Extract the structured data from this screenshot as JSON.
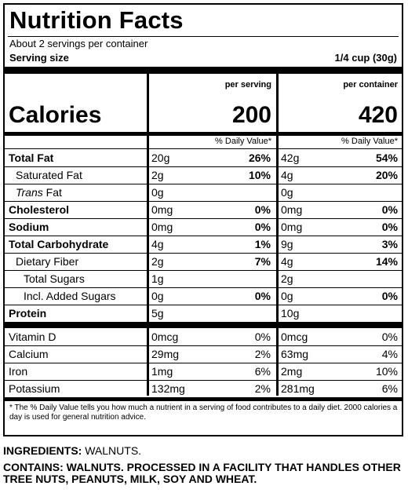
{
  "title": "Nutrition Facts",
  "servings_per_container": "About 2 servings per container",
  "serving_size_label": "Serving size",
  "serving_size_value": "1/4 cup (30g)",
  "col_per_serving": "per serving",
  "col_per_container": "per container",
  "calories_label": "Calories",
  "calories_per_serving": "200",
  "calories_per_container": "420",
  "dv_header_1": "% Daily Value*",
  "dv_header_2": "% Daily Value*",
  "nutrients": [
    {
      "name": "Total Fat",
      "a1": "20g",
      "p1": "26%",
      "a2": "42g",
      "p2": "54%"
    },
    {
      "name": "Saturated Fat",
      "a1": "2g",
      "p1": "10%",
      "a2": "4g",
      "p2": "20%"
    },
    {
      "name_italic": "Trans",
      "name_rest": " Fat",
      "a1": "0g",
      "p1": "",
      "a2": "0g",
      "p2": ""
    },
    {
      "name": "Cholesterol",
      "a1": "0mg",
      "p1": "0%",
      "a2": "0mg",
      "p2": "0%"
    },
    {
      "name": "Sodium",
      "a1": "0mg",
      "p1": "0%",
      "a2": "0mg",
      "p2": "0%"
    },
    {
      "name": "Total Carbohydrate",
      "a1": "4g",
      "p1": "1%",
      "a2": "9g",
      "p2": "3%"
    },
    {
      "name": "Dietary Fiber",
      "a1": "2g",
      "p1": "7%",
      "a2": "4g",
      "p2": "14%"
    },
    {
      "name": "Total Sugars",
      "a1": "1g",
      "p1": "",
      "a2": "2g",
      "p2": ""
    },
    {
      "name": "Incl. Added Sugars",
      "a1": "0g",
      "p1": "0%",
      "a2": "0g",
      "p2": "0%"
    },
    {
      "name": "Protein",
      "a1": "5g",
      "p1": "",
      "a2": "10g",
      "p2": ""
    },
    {
      "name": "Vitamin D",
      "a1": "0mcg",
      "p1": "0%",
      "a2": "0mcg",
      "p2": "0%"
    },
    {
      "name": "Calcium",
      "a1": "29mg",
      "p1": "2%",
      "a2": "63mg",
      "p2": "4%"
    },
    {
      "name": "Iron",
      "a1": "1mg",
      "p1": "6%",
      "a2": "2mg",
      "p2": "10%"
    },
    {
      "name": "Potassium",
      "a1": "132mg",
      "p1": "2%",
      "a2": "281mg",
      "p2": "6%"
    }
  ],
  "footnote": "* The % Daily Value tells you how much a nutrient in a serving of food contributes to a daily diet. 2000 calories a day is used for general nutrition advice.",
  "ingredients_label": "INGREDIENTS:",
  "ingredients_value": " WALNUTS.",
  "contains_text": "CONTAINS: WALNUTS. PROCESSED IN A FACILITY THAT HANDLES OTHER TREE NUTS, PEANUTS, MILK, SOY AND WHEAT."
}
